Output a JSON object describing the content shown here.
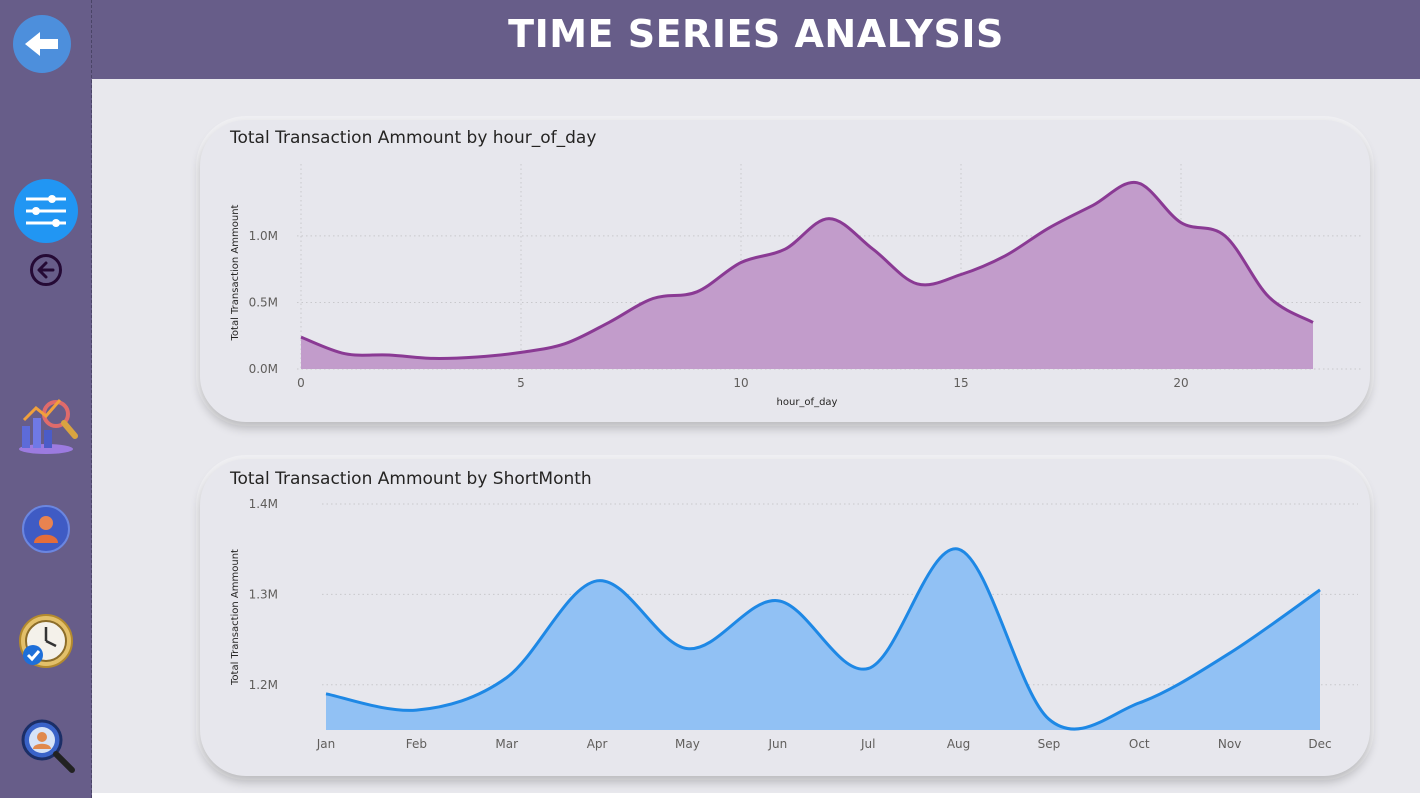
{
  "header": {
    "title": "TIME SERIES ANALYSIS"
  },
  "sidebar": {
    "items": [
      {
        "icon": "back-arrow-icon"
      },
      {
        "icon": "filter-sliders-icon"
      },
      {
        "icon": "circle-back-arrow-icon"
      },
      {
        "icon": "analytics-chart-icon"
      },
      {
        "icon": "user-profile-icon"
      },
      {
        "icon": "clock-check-icon"
      },
      {
        "icon": "magnifier-search-icon"
      }
    ]
  },
  "colors": {
    "hour_line": "#8a3a94",
    "hour_fill": "#c29ccb",
    "month_line": "#1e88e5",
    "month_fill": "#91c1f4",
    "sidebar": "#675d89"
  },
  "chart_data": [
    {
      "type": "area",
      "title": "Total Transaction Ammount by hour_of_day",
      "xlabel": "hour_of_day",
      "ylabel": "Total Transaction Ammount",
      "x": [
        0,
        1,
        2,
        3,
        4,
        5,
        6,
        7,
        8,
        9,
        10,
        11,
        12,
        13,
        14,
        15,
        16,
        17,
        18,
        19,
        20,
        21,
        22,
        23
      ],
      "values": [
        240000,
        115000,
        105000,
        80000,
        90000,
        125000,
        190000,
        350000,
        530000,
        580000,
        800000,
        900000,
        1130000,
        900000,
        640000,
        710000,
        850000,
        1060000,
        1230000,
        1400000,
        1100000,
        1000000,
        540000,
        350000
      ],
      "xticks": [
        "0",
        "5",
        "10",
        "15",
        "20"
      ],
      "yticks": [
        "0.0M",
        "0.5M",
        "1.0M"
      ],
      "xlim": [
        0,
        23
      ],
      "ylim": [
        0,
        1450000
      ],
      "grid": true
    },
    {
      "type": "area",
      "title": "Total Transaction Ammount by ShortMonth",
      "xlabel": "",
      "ylabel": "Total Transaction Ammount",
      "categories": [
        "Jan",
        "Feb",
        "Mar",
        "Apr",
        "May",
        "Jun",
        "Jul",
        "Aug",
        "Sep",
        "Oct",
        "Nov",
        "Dec"
      ],
      "values": [
        1190000,
        1172000,
        1208000,
        1315000,
        1240000,
        1293000,
        1218000,
        1350000,
        1162000,
        1180000,
        1235000,
        1305000
      ],
      "yticks": [
        "1.2M",
        "1.3M",
        "1.4M"
      ],
      "ylim": [
        1150000,
        1400000
      ],
      "grid": true
    }
  ]
}
